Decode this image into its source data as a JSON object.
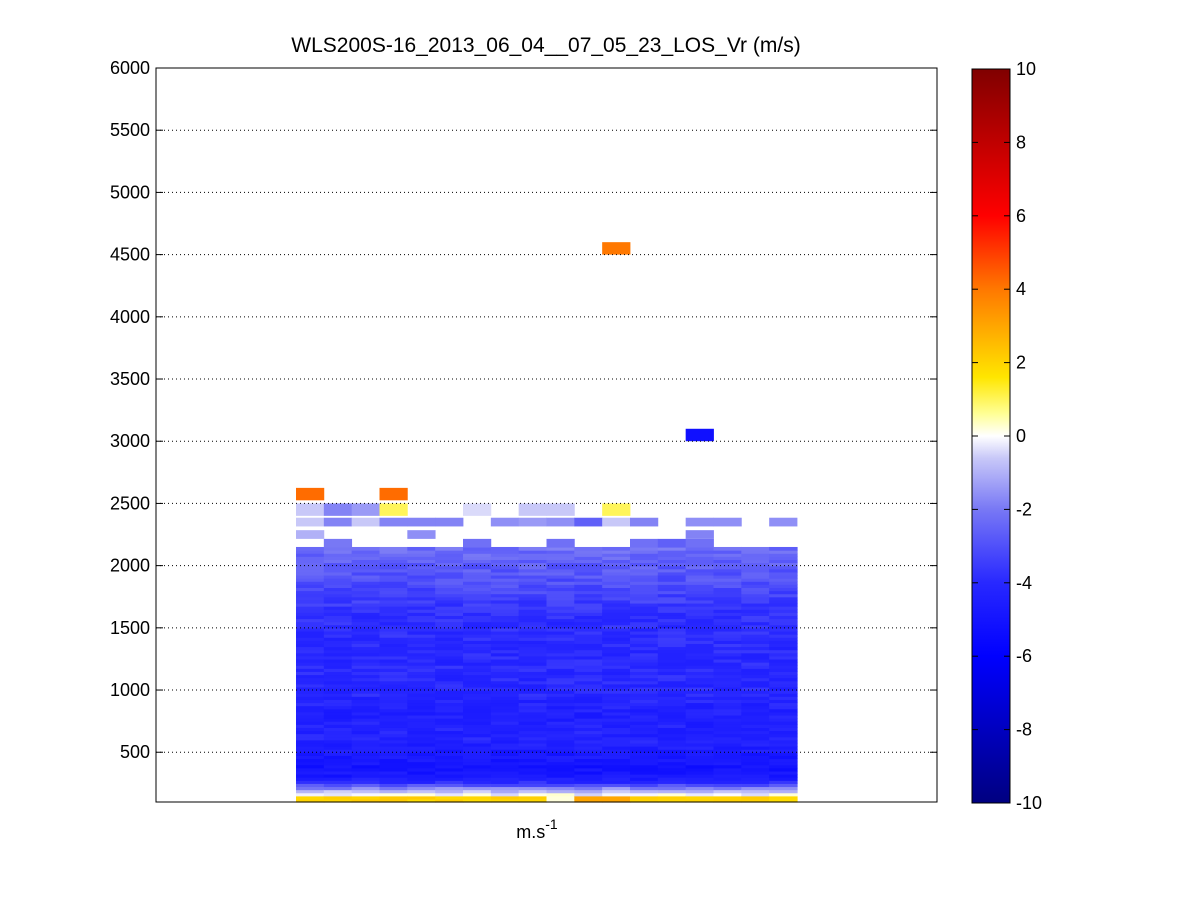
{
  "chart_data": {
    "type": "heatmap",
    "title": "WLS200S-16_2013_06_04__07_05_23_LOS_Vr (m/s)",
    "xlabel_base": "m.s",
    "xlabel_exp": "-1",
    "ylabel": "",
    "ylim": [
      100,
      6000
    ],
    "yticks": [
      500,
      1000,
      1500,
      2000,
      2500,
      3000,
      3500,
      4000,
      4500,
      5000,
      5500,
      6000
    ],
    "grid": "horizontal-dotted",
    "colorbar": {
      "range": [
        -10,
        10
      ],
      "ticks": [
        -10,
        -8,
        -6,
        -4,
        -2,
        0,
        2,
        4,
        6,
        8,
        10
      ],
      "placement": "right"
    },
    "columns": 18,
    "altitude_range": [
      100,
      2150
    ],
    "bulk_profile": [
      {
        "altitude": 120,
        "value": 1.6
      },
      {
        "altitude": 170,
        "value": -0.4
      },
      {
        "altitude": 210,
        "value": -1.6
      },
      {
        "altitude": 250,
        "value": -3.6
      },
      {
        "altitude": 300,
        "value": -4.8
      },
      {
        "altitude": 400,
        "value": -5.0
      },
      {
        "altitude": 600,
        "value": -4.2
      },
      {
        "altitude": 800,
        "value": -4.4
      },
      {
        "altitude": 1000,
        "value": -4.0
      },
      {
        "altitude": 1300,
        "value": -4.0
      },
      {
        "altitude": 1600,
        "value": -3.8
      },
      {
        "altitude": 1800,
        "value": -3.2
      },
      {
        "altitude": 1950,
        "value": -2.8
      },
      {
        "altitude": 2100,
        "value": -2.4
      },
      {
        "altitude": 2150,
        "value": -2.2
      }
    ],
    "isolated_cells": [
      {
        "column": 0,
        "altitude": 2575,
        "value": 4.2
      },
      {
        "column": 3,
        "altitude": 2575,
        "value": 4.2
      },
      {
        "column": 11,
        "altitude": 4550,
        "value": 4.0
      },
      {
        "column": 14,
        "altitude": 3050,
        "value": -5.2
      },
      {
        "column": 0,
        "altitude": 2450,
        "value": -0.6
      },
      {
        "column": 1,
        "altitude": 2450,
        "value": -1.8
      },
      {
        "column": 2,
        "altitude": 2450,
        "value": -1.4
      },
      {
        "column": 3,
        "altitude": 2450,
        "value": 1.0
      },
      {
        "column": 6,
        "altitude": 2450,
        "value": -0.4
      },
      {
        "column": 8,
        "altitude": 2450,
        "value": -0.6
      },
      {
        "column": 9,
        "altitude": 2450,
        "value": -0.6
      },
      {
        "column": 11,
        "altitude": 2450,
        "value": 1.0
      },
      {
        "column": 0,
        "altitude": 2350,
        "value": -0.6
      },
      {
        "column": 1,
        "altitude": 2350,
        "value": -1.8
      },
      {
        "column": 2,
        "altitude": 2350,
        "value": -0.6
      },
      {
        "column": 3,
        "altitude": 2350,
        "value": -1.8
      },
      {
        "column": 4,
        "altitude": 2350,
        "value": -1.8
      },
      {
        "column": 5,
        "altitude": 2350,
        "value": -1.8
      },
      {
        "column": 7,
        "altitude": 2350,
        "value": -1.6
      },
      {
        "column": 8,
        "altitude": 2350,
        "value": -1.4
      },
      {
        "column": 9,
        "altitude": 2350,
        "value": -1.6
      },
      {
        "column": 10,
        "altitude": 2350,
        "value": -2.6
      },
      {
        "column": 11,
        "altitude": 2350,
        "value": -0.6
      },
      {
        "column": 12,
        "altitude": 2350,
        "value": -1.8
      },
      {
        "column": 14,
        "altitude": 2350,
        "value": -1.6
      },
      {
        "column": 15,
        "altitude": 2350,
        "value": -1.6
      },
      {
        "column": 17,
        "altitude": 2350,
        "value": -1.6
      },
      {
        "column": 0,
        "altitude": 2250,
        "value": -1.0
      },
      {
        "column": 4,
        "altitude": 2250,
        "value": -1.6
      },
      {
        "column": 14,
        "altitude": 2250,
        "value": -1.8
      },
      {
        "column": 1,
        "altitude": 2180,
        "value": -2.0
      },
      {
        "column": 6,
        "altitude": 2180,
        "value": -2.2
      },
      {
        "column": 9,
        "altitude": 2180,
        "value": -2.2
      },
      {
        "column": 12,
        "altitude": 2180,
        "value": -2.2
      },
      {
        "column": 13,
        "altitude": 2180,
        "value": -2.6
      },
      {
        "column": 14,
        "altitude": 2180,
        "value": -2.2
      }
    ]
  }
}
